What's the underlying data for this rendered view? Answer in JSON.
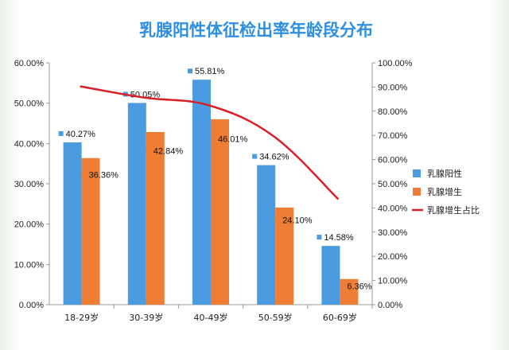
{
  "chart_data": {
    "type": "bar",
    "title": "乳腺阳性体征检出率年龄段分布",
    "categories": [
      "18-29岁",
      "30-39岁",
      "40-49岁",
      "50-59岁",
      "60-69岁"
    ],
    "series": [
      {
        "name": "乳腺阳性",
        "kind": "bar",
        "axis": "left",
        "color": "#4a9be0",
        "values": [
          40.27,
          50.05,
          55.81,
          34.62,
          14.58
        ],
        "labels": [
          "40.27%",
          "50.05%",
          "55.81%",
          "34.62%",
          "14.58%"
        ]
      },
      {
        "name": "乳腺增生",
        "kind": "bar",
        "axis": "left",
        "color": "#ef7e34",
        "values": [
          36.36,
          42.84,
          46.01,
          24.1,
          6.36
        ],
        "labels": [
          "36.36%",
          "42.84%",
          "46.01%",
          "24.10%",
          "6.36%"
        ]
      },
      {
        "name": "乳腺增生占比",
        "kind": "line",
        "axis": "right",
        "color": "#d92027",
        "values": [
          90.3,
          85.6,
          82.4,
          69.6,
          43.6
        ]
      }
    ],
    "y_left": {
      "min": 0,
      "max": 60,
      "step": 10,
      "ticks": [
        "0.00%",
        "10.00%",
        "20.00%",
        "30.00%",
        "40.00%",
        "50.00%",
        "60.00%"
      ]
    },
    "y_right": {
      "min": 0,
      "max": 100,
      "step": 10,
      "ticks": [
        "0.00%",
        "10.00%",
        "20.00%",
        "30.00%",
        "40.00%",
        "50.00%",
        "60.00%",
        "70.00%",
        "80.00%",
        "90.00%",
        "100.00%"
      ]
    },
    "grid": false,
    "legend": "right"
  }
}
